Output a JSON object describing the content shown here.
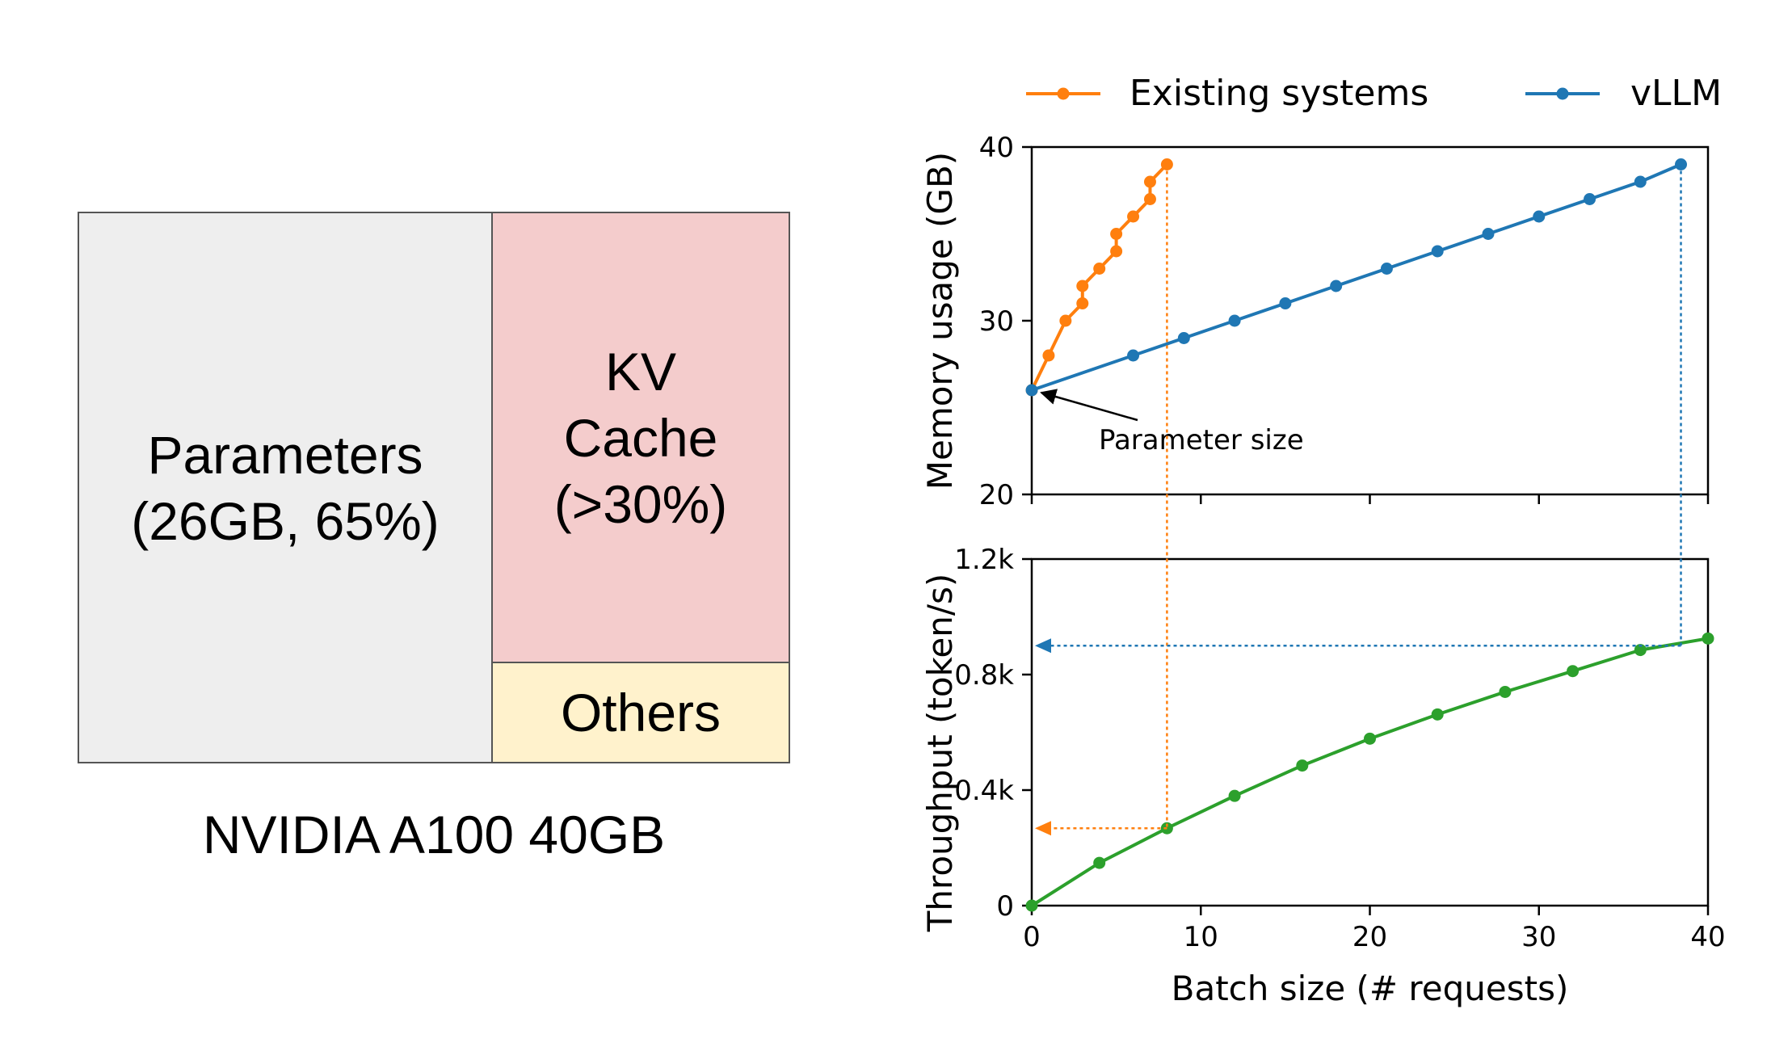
{
  "memory_layout": {
    "parameters_label": "Parameters\n(26GB, 65%)",
    "kv_cache_label": "KV\nCache\n(>30%)",
    "others_label": "Others",
    "gpu_label": "NVIDIA A100 40GB",
    "colors": {
      "parameters": "#eeeeee",
      "kv_cache": "#f4cccc",
      "others": "#fff2cc"
    }
  },
  "chart_data": [
    {
      "type": "line",
      "title": "",
      "xlabel": "",
      "ylabel": "Memory usage (GB)",
      "xlim": [
        0,
        40
      ],
      "ylim": [
        20,
        40
      ],
      "yticks": [
        20,
        30,
        40
      ],
      "ytick_labels": [
        "20",
        "30",
        "40"
      ],
      "legend": "top",
      "series": [
        {
          "name": "Existing systems",
          "color": "#ff7f0e",
          "x": [
            0,
            1,
            2,
            3,
            3,
            4,
            5,
            5,
            6,
            7,
            7,
            8
          ],
          "y": [
            26,
            28,
            30,
            31,
            32,
            33,
            34,
            35,
            36,
            37,
            38,
            39
          ]
        },
        {
          "name": "vLLM",
          "color": "#1f77b4",
          "x": [
            0,
            6,
            9,
            12,
            15,
            18,
            21,
            24,
            27,
            30,
            33,
            36,
            38.4
          ],
          "y": [
            26,
            28,
            29,
            30,
            31,
            32,
            33,
            34,
            35,
            36,
            37,
            38,
            39
          ]
        }
      ],
      "annotation": {
        "text": "Parameter size",
        "target_x": 0,
        "target_y": 26,
        "text_x": 4,
        "text_y": 23
      }
    },
    {
      "type": "line",
      "title": "",
      "xlabel": "Batch size (# requests)",
      "ylabel": "Throughput (token/s)",
      "xlim": [
        0,
        40
      ],
      "ylim": [
        0,
        1200
      ],
      "xticks": [
        0,
        10,
        20,
        30,
        40
      ],
      "xtick_labels": [
        "0",
        "10",
        "20",
        "30",
        "40"
      ],
      "yticks": [
        0,
        400,
        800,
        1200
      ],
      "ytick_labels": [
        "0",
        "0.4k",
        "0.8k",
        "1.2k"
      ],
      "series": [
        {
          "name": "Throughput",
          "color": "#2ca02c",
          "x": [
            0,
            4,
            8,
            12,
            16,
            20,
            24,
            28,
            32,
            36,
            40
          ],
          "y": [
            0,
            148,
            268,
            380,
            485,
            578,
            662,
            740,
            812,
            885,
            925
          ]
        }
      ],
      "guides": [
        {
          "color": "#ff7f0e",
          "x": 8,
          "mem_top": 39,
          "throughput": 268
        },
        {
          "color": "#1f77b4",
          "x": 38.4,
          "mem_top": 39,
          "throughput": 900
        }
      ]
    }
  ]
}
